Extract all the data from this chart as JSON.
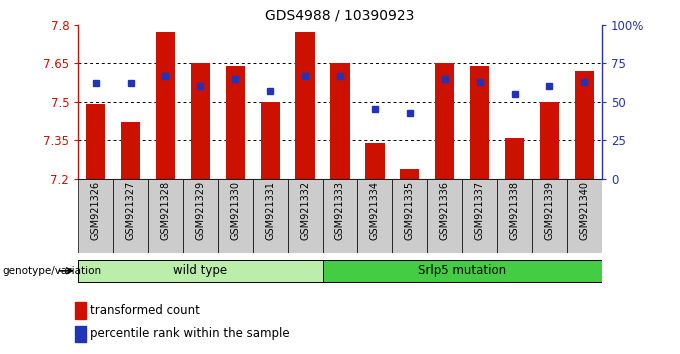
{
  "title": "GDS4988 / 10390923",
  "samples": [
    "GSM921326",
    "GSM921327",
    "GSM921328",
    "GSM921329",
    "GSM921330",
    "GSM921331",
    "GSM921332",
    "GSM921333",
    "GSM921334",
    "GSM921335",
    "GSM921336",
    "GSM921337",
    "GSM921338",
    "GSM921339",
    "GSM921340"
  ],
  "transformed_count": [
    7.49,
    7.42,
    7.77,
    7.65,
    7.64,
    7.5,
    7.77,
    7.65,
    7.34,
    7.24,
    7.65,
    7.64,
    7.36,
    7.5,
    7.62
  ],
  "percentile_rank": [
    62,
    62,
    67,
    60,
    65,
    57,
    67,
    67,
    45,
    43,
    65,
    63,
    55,
    60,
    63
  ],
  "y_min": 7.2,
  "y_max": 7.8,
  "y_ticks": [
    7.2,
    7.35,
    7.5,
    7.65,
    7.8
  ],
  "y_tick_labels": [
    "7.2",
    "7.35",
    "7.5",
    "7.65",
    "7.8"
  ],
  "right_y_ticks": [
    0,
    25,
    50,
    75,
    100
  ],
  "right_y_tick_labels": [
    "0",
    "25",
    "50",
    "75",
    "100%"
  ],
  "bar_color": "#cc1100",
  "dot_color": "#2233bb",
  "bar_baseline": 7.2,
  "groups": [
    {
      "label": "wild type",
      "start": 0,
      "end": 7,
      "color": "#bbeeaa"
    },
    {
      "label": "Srlp5 mutation",
      "start": 7,
      "end": 15,
      "color": "#44cc44"
    }
  ],
  "legend_items": [
    {
      "label": "transformed count",
      "color": "#cc1100"
    },
    {
      "label": "percentile rank within the sample",
      "color": "#2233bb"
    }
  ],
  "xlabel_left": "genotype/variation",
  "grid_color": "black",
  "grid_yticks": [
    7.35,
    7.5,
    7.65
  ]
}
